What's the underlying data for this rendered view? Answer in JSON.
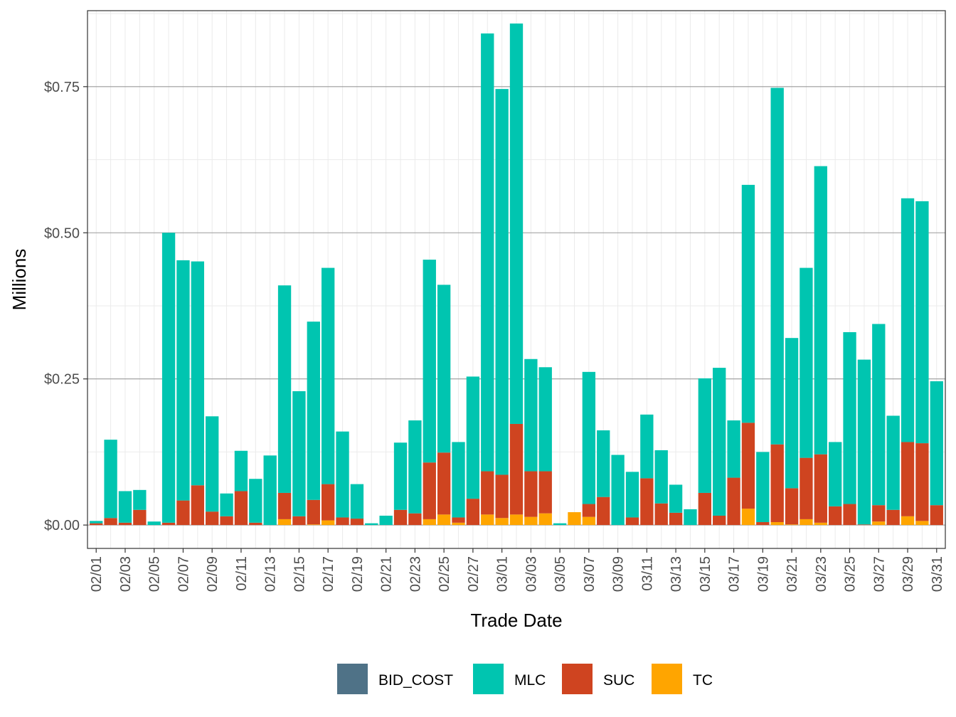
{
  "chart_data": {
    "type": "bar",
    "stacked": true,
    "xlabel": "Trade Date",
    "ylabel": "Millions",
    "ylim": [
      -0.04,
      0.88
    ],
    "y_ticks": [
      0.0,
      0.25,
      0.5,
      0.75
    ],
    "y_tick_labels": [
      "$0.00",
      "$0.25",
      "$0.50",
      "$0.75"
    ],
    "grid": true,
    "legend_position": "bottom",
    "colors": {
      "BID_COST": "#4f7287",
      "MLC": "#00c5b0",
      "SUC": "#cf4420",
      "TC": "#ffa500"
    },
    "legend": [
      "BID_COST",
      "MLC",
      "SUC",
      "TC"
    ],
    "categories": [
      "02/01",
      "02/02",
      "02/03",
      "02/04",
      "02/05",
      "02/06",
      "02/07",
      "02/08",
      "02/09",
      "02/10",
      "02/11",
      "02/12",
      "02/13",
      "02/14",
      "02/15",
      "02/16",
      "02/17",
      "02/18",
      "02/19",
      "02/20",
      "02/21",
      "02/22",
      "02/23",
      "02/24",
      "02/25",
      "02/26",
      "02/27",
      "02/28",
      "03/01",
      "03/02",
      "03/03",
      "03/04",
      "03/05",
      "03/06",
      "03/07",
      "03/08",
      "03/09",
      "03/10",
      "03/11",
      "03/12",
      "03/13",
      "03/14",
      "03/15",
      "03/16",
      "03/17",
      "03/18",
      "03/19",
      "03/20",
      "03/21",
      "03/22",
      "03/23",
      "03/24",
      "03/25",
      "03/26",
      "03/27",
      "03/28",
      "03/29",
      "03/30",
      "03/31"
    ],
    "tick_labels": [
      "02/01",
      "02/03",
      "02/05",
      "02/07",
      "02/09",
      "02/11",
      "02/13",
      "02/15",
      "02/17",
      "02/19",
      "02/21",
      "02/23",
      "02/25",
      "02/27",
      "03/01",
      "03/03",
      "03/05",
      "03/07",
      "03/09",
      "03/11",
      "03/13",
      "03/15",
      "03/17",
      "03/19",
      "03/21",
      "03/23",
      "03/25",
      "03/27",
      "03/29",
      "03/31"
    ],
    "series": [
      {
        "name": "TC",
        "values": [
          0,
          0,
          0,
          0,
          0,
          0,
          0,
          0,
          0,
          0,
          0,
          0,
          0,
          0.01,
          0,
          0.001,
          0.008,
          0,
          0,
          0,
          0,
          0,
          0,
          0.01,
          0.018,
          0.004,
          0,
          0.018,
          0.012,
          0.018,
          0.014,
          0.02,
          0,
          0.022,
          0.014,
          0,
          0,
          0,
          0,
          0,
          0,
          0,
          0,
          0,
          0,
          0.028,
          0,
          0.005,
          0.001,
          0.01,
          0.004,
          0,
          0,
          0,
          0.006,
          0,
          0.015,
          0.007,
          0
        ]
      },
      {
        "name": "SUC",
        "values": [
          0.003,
          0.012,
          0.004,
          0.026,
          0,
          0.004,
          0.042,
          0.068,
          0.023,
          0.015,
          0.058,
          0.004,
          0,
          0.045,
          0.015,
          0.042,
          0.062,
          0.013,
          0.011,
          0,
          0,
          0.026,
          0.02,
          0.097,
          0.106,
          0.009,
          0.045,
          0.074,
          0.074,
          0.155,
          0.078,
          0.072,
          0,
          0,
          0.022,
          0.048,
          0,
          0.013,
          0.08,
          0.037,
          0.021,
          0,
          0.055,
          0.016,
          0.081,
          0.147,
          0.005,
          0.133,
          0.062,
          0.105,
          0.117,
          0.032,
          0.036,
          0.001,
          0.028,
          0.026,
          0.127,
          0.133,
          0.034
        ]
      },
      {
        "name": "MLC",
        "values": [
          0.004,
          0.134,
          0.054,
          0.034,
          0.006,
          0.496,
          0.411,
          0.383,
          0.163,
          0.039,
          0.069,
          0.075,
          0.119,
          0.355,
          0.214,
          0.305,
          0.37,
          0.147,
          0.059,
          0.003,
          0.016,
          0.115,
          0.159,
          0.347,
          0.287,
          0.129,
          0.209,
          0.749,
          0.66,
          0.685,
          0.192,
          0.178,
          0.003,
          0,
          0.226,
          0.114,
          0.12,
          0.078,
          0.109,
          0.091,
          0.048,
          0.027,
          0.196,
          0.253,
          0.098,
          0.407,
          0.12,
          0.61,
          0.257,
          0.325,
          0.493,
          0.11,
          0.294,
          0.282,
          0.31,
          0.161,
          0.417,
          0.414,
          0.212
        ]
      }
    ]
  }
}
